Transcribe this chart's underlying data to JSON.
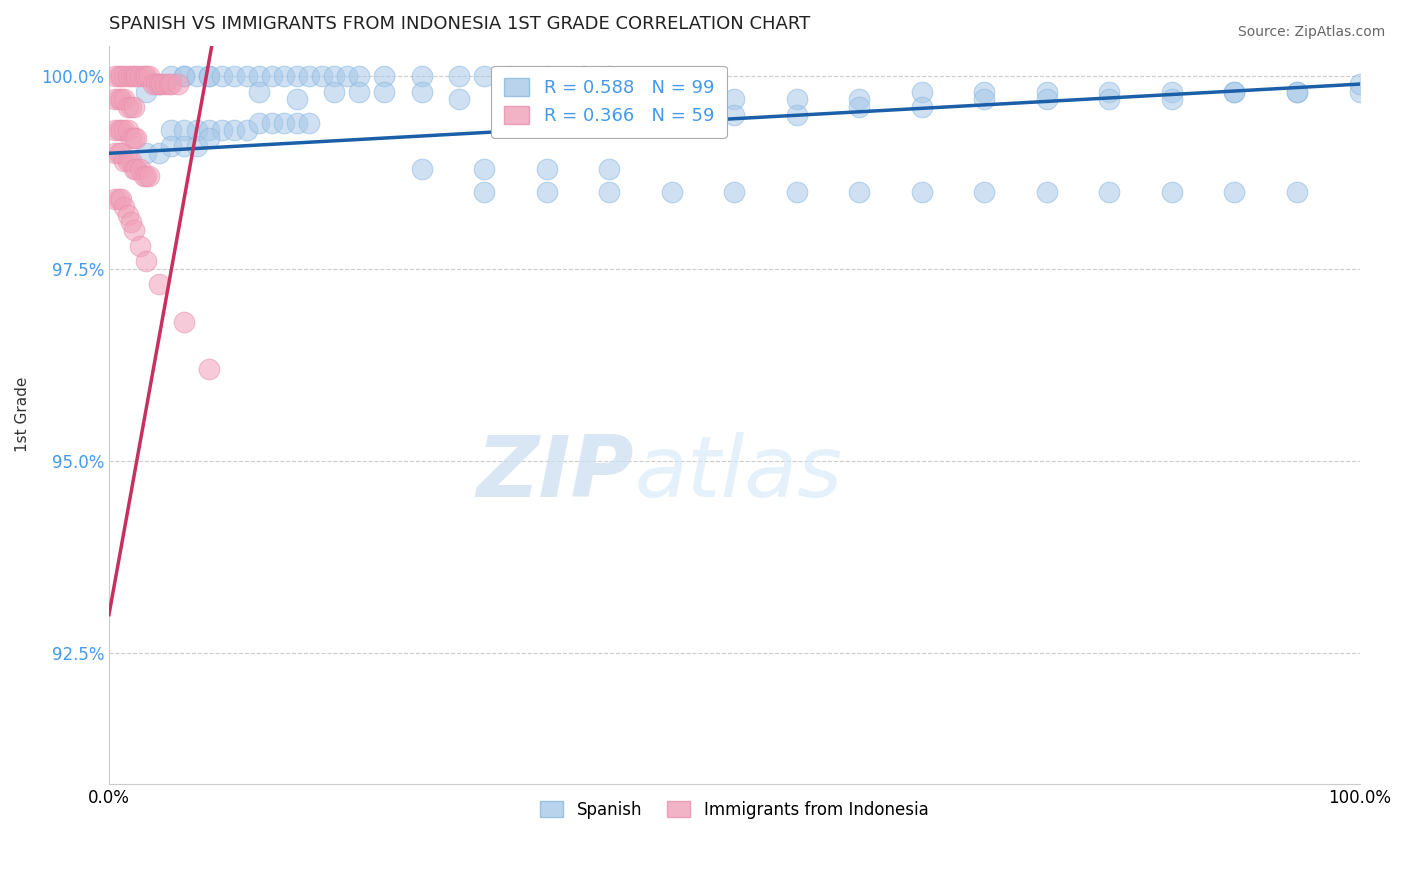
{
  "title": "SPANISH VS IMMIGRANTS FROM INDONESIA 1ST GRADE CORRELATION CHART",
  "source": "Source: ZipAtlas.com",
  "ylabel": "1st Grade",
  "xlim": [
    0.0,
    1.0
  ],
  "ylim": [
    0.908,
    1.004
  ],
  "yticks": [
    0.925,
    0.95,
    0.975,
    1.0
  ],
  "ytick_labels": [
    "92.5%",
    "95.0%",
    "97.5%",
    "100.0%"
  ],
  "xtick_labels": [
    "0.0%",
    "100.0%"
  ],
  "blue_color": "#a8c8e8",
  "pink_color": "#f0a0b8",
  "blue_line_color": "#1a5fa8",
  "pink_line_color": "#c83060",
  "legend_blue_label": "Spanish",
  "legend_pink_label": "Immigrants from Indonesia",
  "R_blue": 0.588,
  "N_blue": 99,
  "R_pink": 0.366,
  "N_pink": 59,
  "watermark_zip": "ZIP",
  "watermark_atlas": "atlas",
  "grid_color": "#cccccc",
  "background_color": "#ffffff",
  "blue_x": [
    0.03,
    0.04,
    0.05,
    0.06,
    0.06,
    0.07,
    0.08,
    0.08,
    0.09,
    0.1,
    0.11,
    0.12,
    0.13,
    0.14,
    0.15,
    0.16,
    0.17,
    0.18,
    0.19,
    0.2,
    0.22,
    0.25,
    0.28,
    0.3,
    0.32,
    0.35,
    0.38,
    0.4,
    0.12,
    0.15,
    0.18,
    0.2,
    0.22,
    0.25,
    0.28,
    0.32,
    0.35,
    0.38,
    0.42,
    0.45,
    0.48,
    0.5,
    0.55,
    0.6,
    0.65,
    0.7,
    0.75,
    0.8,
    0.85,
    0.9,
    0.95,
    1.0,
    0.5,
    0.55,
    0.6,
    0.65,
    0.7,
    0.75,
    0.8,
    0.85,
    0.9,
    0.95,
    1.0,
    0.05,
    0.06,
    0.07,
    0.08,
    0.09,
    0.1,
    0.11,
    0.12,
    0.13,
    0.14,
    0.15,
    0.16,
    0.03,
    0.04,
    0.05,
    0.06,
    0.07,
    0.08,
    0.25,
    0.3,
    0.35,
    0.4,
    0.3,
    0.35,
    0.4,
    0.45,
    0.5,
    0.55,
    0.6,
    0.65,
    0.7,
    0.75,
    0.8,
    0.85,
    0.9,
    0.95
  ],
  "blue_y": [
    0.998,
    0.999,
    1.0,
    1.0,
    1.0,
    1.0,
    1.0,
    1.0,
    1.0,
    1.0,
    1.0,
    1.0,
    1.0,
    1.0,
    1.0,
    1.0,
    1.0,
    1.0,
    1.0,
    1.0,
    1.0,
    1.0,
    1.0,
    1.0,
    1.0,
    1.0,
    1.0,
    1.0,
    0.998,
    0.997,
    0.998,
    0.998,
    0.998,
    0.998,
    0.997,
    0.997,
    0.997,
    0.996,
    0.997,
    0.997,
    0.997,
    0.997,
    0.997,
    0.997,
    0.998,
    0.998,
    0.998,
    0.998,
    0.998,
    0.998,
    0.998,
    0.998,
    0.995,
    0.995,
    0.996,
    0.996,
    0.997,
    0.997,
    0.997,
    0.997,
    0.998,
    0.998,
    0.999,
    0.993,
    0.993,
    0.993,
    0.993,
    0.993,
    0.993,
    0.993,
    0.994,
    0.994,
    0.994,
    0.994,
    0.994,
    0.99,
    0.99,
    0.991,
    0.991,
    0.991,
    0.992,
    0.988,
    0.988,
    0.988,
    0.988,
    0.985,
    0.985,
    0.985,
    0.985,
    0.985,
    0.985,
    0.985,
    0.985,
    0.985,
    0.985,
    0.985,
    0.985,
    0.985,
    0.985
  ],
  "pink_x": [
    0.005,
    0.008,
    0.01,
    0.012,
    0.015,
    0.018,
    0.02,
    0.022,
    0.025,
    0.028,
    0.03,
    0.032,
    0.035,
    0.038,
    0.04,
    0.042,
    0.045,
    0.048,
    0.05,
    0.055,
    0.005,
    0.008,
    0.01,
    0.012,
    0.015,
    0.018,
    0.02,
    0.005,
    0.008,
    0.01,
    0.012,
    0.015,
    0.018,
    0.02,
    0.022,
    0.005,
    0.008,
    0.01,
    0.012,
    0.015,
    0.018,
    0.02,
    0.022,
    0.025,
    0.028,
    0.03,
    0.032,
    0.005,
    0.008,
    0.01,
    0.012,
    0.015,
    0.018,
    0.02,
    0.025,
    0.03,
    0.04,
    0.06,
    0.08
  ],
  "pink_y": [
    1.0,
    1.0,
    1.0,
    1.0,
    1.0,
    1.0,
    1.0,
    1.0,
    1.0,
    1.0,
    1.0,
    1.0,
    0.999,
    0.999,
    0.999,
    0.999,
    0.999,
    0.999,
    0.999,
    0.999,
    0.997,
    0.997,
    0.997,
    0.997,
    0.996,
    0.996,
    0.996,
    0.993,
    0.993,
    0.993,
    0.993,
    0.993,
    0.992,
    0.992,
    0.992,
    0.99,
    0.99,
    0.99,
    0.989,
    0.989,
    0.989,
    0.988,
    0.988,
    0.988,
    0.987,
    0.987,
    0.987,
    0.984,
    0.984,
    0.984,
    0.983,
    0.982,
    0.981,
    0.98,
    0.978,
    0.976,
    0.973,
    0.968,
    0.962
  ]
}
